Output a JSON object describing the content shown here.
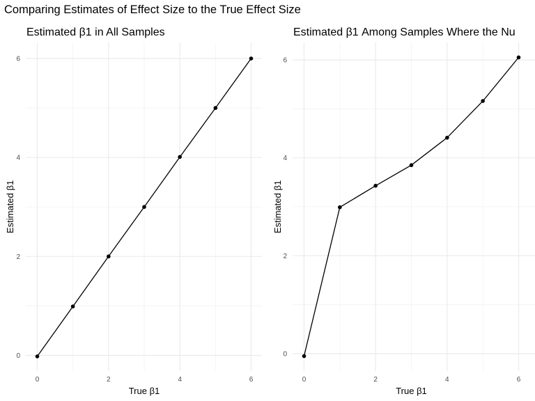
{
  "figure_title": "Comparing Estimates of Effect Size to the True Effect Size",
  "chart_data": [
    {
      "type": "line",
      "title": "Estimated β1 in All Samples",
      "xlabel": "True β1",
      "ylabel": "Estimated β1",
      "xlim": [
        0,
        6
      ],
      "ylim": [
        0,
        6
      ],
      "xticks": [
        0,
        2,
        4,
        6
      ],
      "yticks": [
        0,
        2,
        4,
        6
      ],
      "grid": true,
      "series": [
        {
          "x": [
            0,
            1,
            2,
            3,
            4,
            5,
            6
          ],
          "values": [
            -0.02,
            0.99,
            2.0,
            3.0,
            4.01,
            5.0,
            6.0
          ]
        }
      ]
    },
    {
      "type": "line",
      "title": "Estimated β1 Among Samples Where the Nu",
      "xlabel": "True β1",
      "ylabel": "Estimated β1",
      "xlim": [
        0,
        6
      ],
      "ylim": [
        0,
        6
      ],
      "xticks": [
        0,
        2,
        4,
        6
      ],
      "yticks": [
        0,
        2,
        4,
        6
      ],
      "grid": true,
      "series": [
        {
          "x": [
            0,
            1,
            2,
            3,
            4,
            5,
            6
          ],
          "values": [
            -0.05,
            2.99,
            3.43,
            3.85,
            4.41,
            5.16,
            6.05
          ]
        }
      ]
    }
  ]
}
